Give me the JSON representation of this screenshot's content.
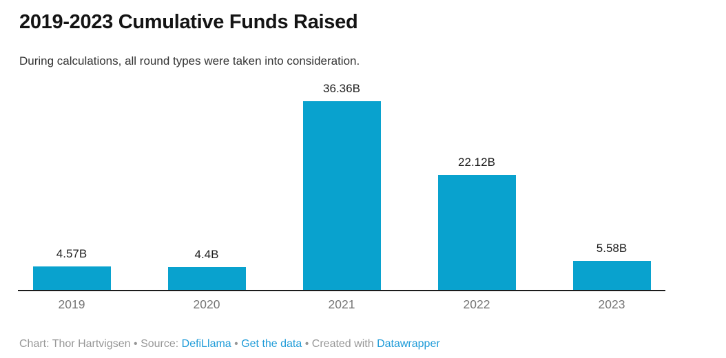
{
  "header": {
    "title": "2019-2023 Cumulative Funds Raised",
    "subtitle": "During calculations, all round types were taken into consideration."
  },
  "chart_data": {
    "type": "bar",
    "title": "2019-2023 Cumulative Funds Raised",
    "subtitle": "During calculations, all round types were taken into consideration.",
    "categories": [
      "2019",
      "2020",
      "2021",
      "2022",
      "2023"
    ],
    "values": [
      4.57,
      4.4,
      36.36,
      22.12,
      5.58
    ],
    "value_labels": [
      "4.57B",
      "4.4B",
      "36.36B",
      "22.12B",
      "5.58B"
    ],
    "unit": "B",
    "xlabel": "",
    "ylabel": "",
    "ylim": [
      0,
      36.36
    ],
    "grid": false,
    "legend": "none",
    "value_labels_position": "above-bars"
  },
  "colors": {
    "bar": "#09a2ce",
    "axis": "#1c1c1c",
    "title_text": "#141414",
    "subtitle_text": "#333333",
    "value_label_text": "#1f1f1f",
    "tick_label_text": "#767676",
    "footer_text": "#979797",
    "link": "#1e9bd8"
  },
  "footer": {
    "chart_credit": "Chart: Thor Hartvigsen",
    "separator": "•",
    "source_label": "Source:",
    "source_link": "DefiLlama",
    "get_data_link": "Get the data",
    "created_with_label": "Created with",
    "creator_link": "Datawrapper"
  }
}
